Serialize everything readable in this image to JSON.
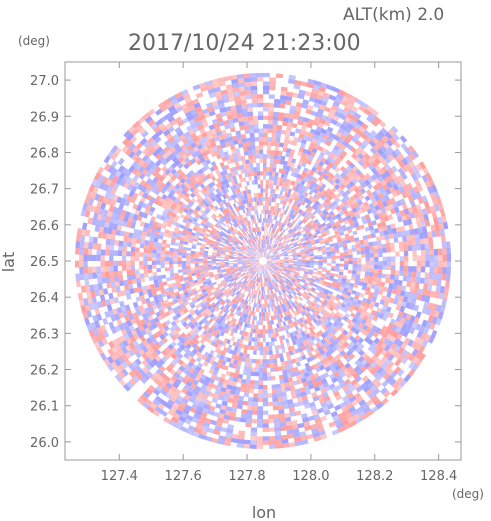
{
  "chart_data": {
    "type": "heatmap",
    "title": "2017/10/24 21:23:00",
    "altitude_label": "ALT(km) 2.0",
    "xlabel": "lon",
    "ylabel": "lat",
    "x_unit": "(deg)",
    "y_unit": "(deg)",
    "xlim": [
      127.23,
      128.47
    ],
    "ylim": [
      25.95,
      27.05
    ],
    "x_ticks": [
      "127.4",
      "127.6",
      "127.8",
      "128.0",
      "128.2",
      "128.4"
    ],
    "y_ticks": [
      "26.0",
      "26.1",
      "26.2",
      "26.3",
      "26.4",
      "26.5",
      "26.6",
      "26.7",
      "26.8",
      "26.9",
      "27.0"
    ],
    "center": {
      "lon": 127.85,
      "lat": 26.5
    },
    "radius_deg_lat": 0.52,
    "colors": {
      "positive": "#ff9999",
      "negative": "#9999ff",
      "neutral": "#ffffff"
    }
  }
}
